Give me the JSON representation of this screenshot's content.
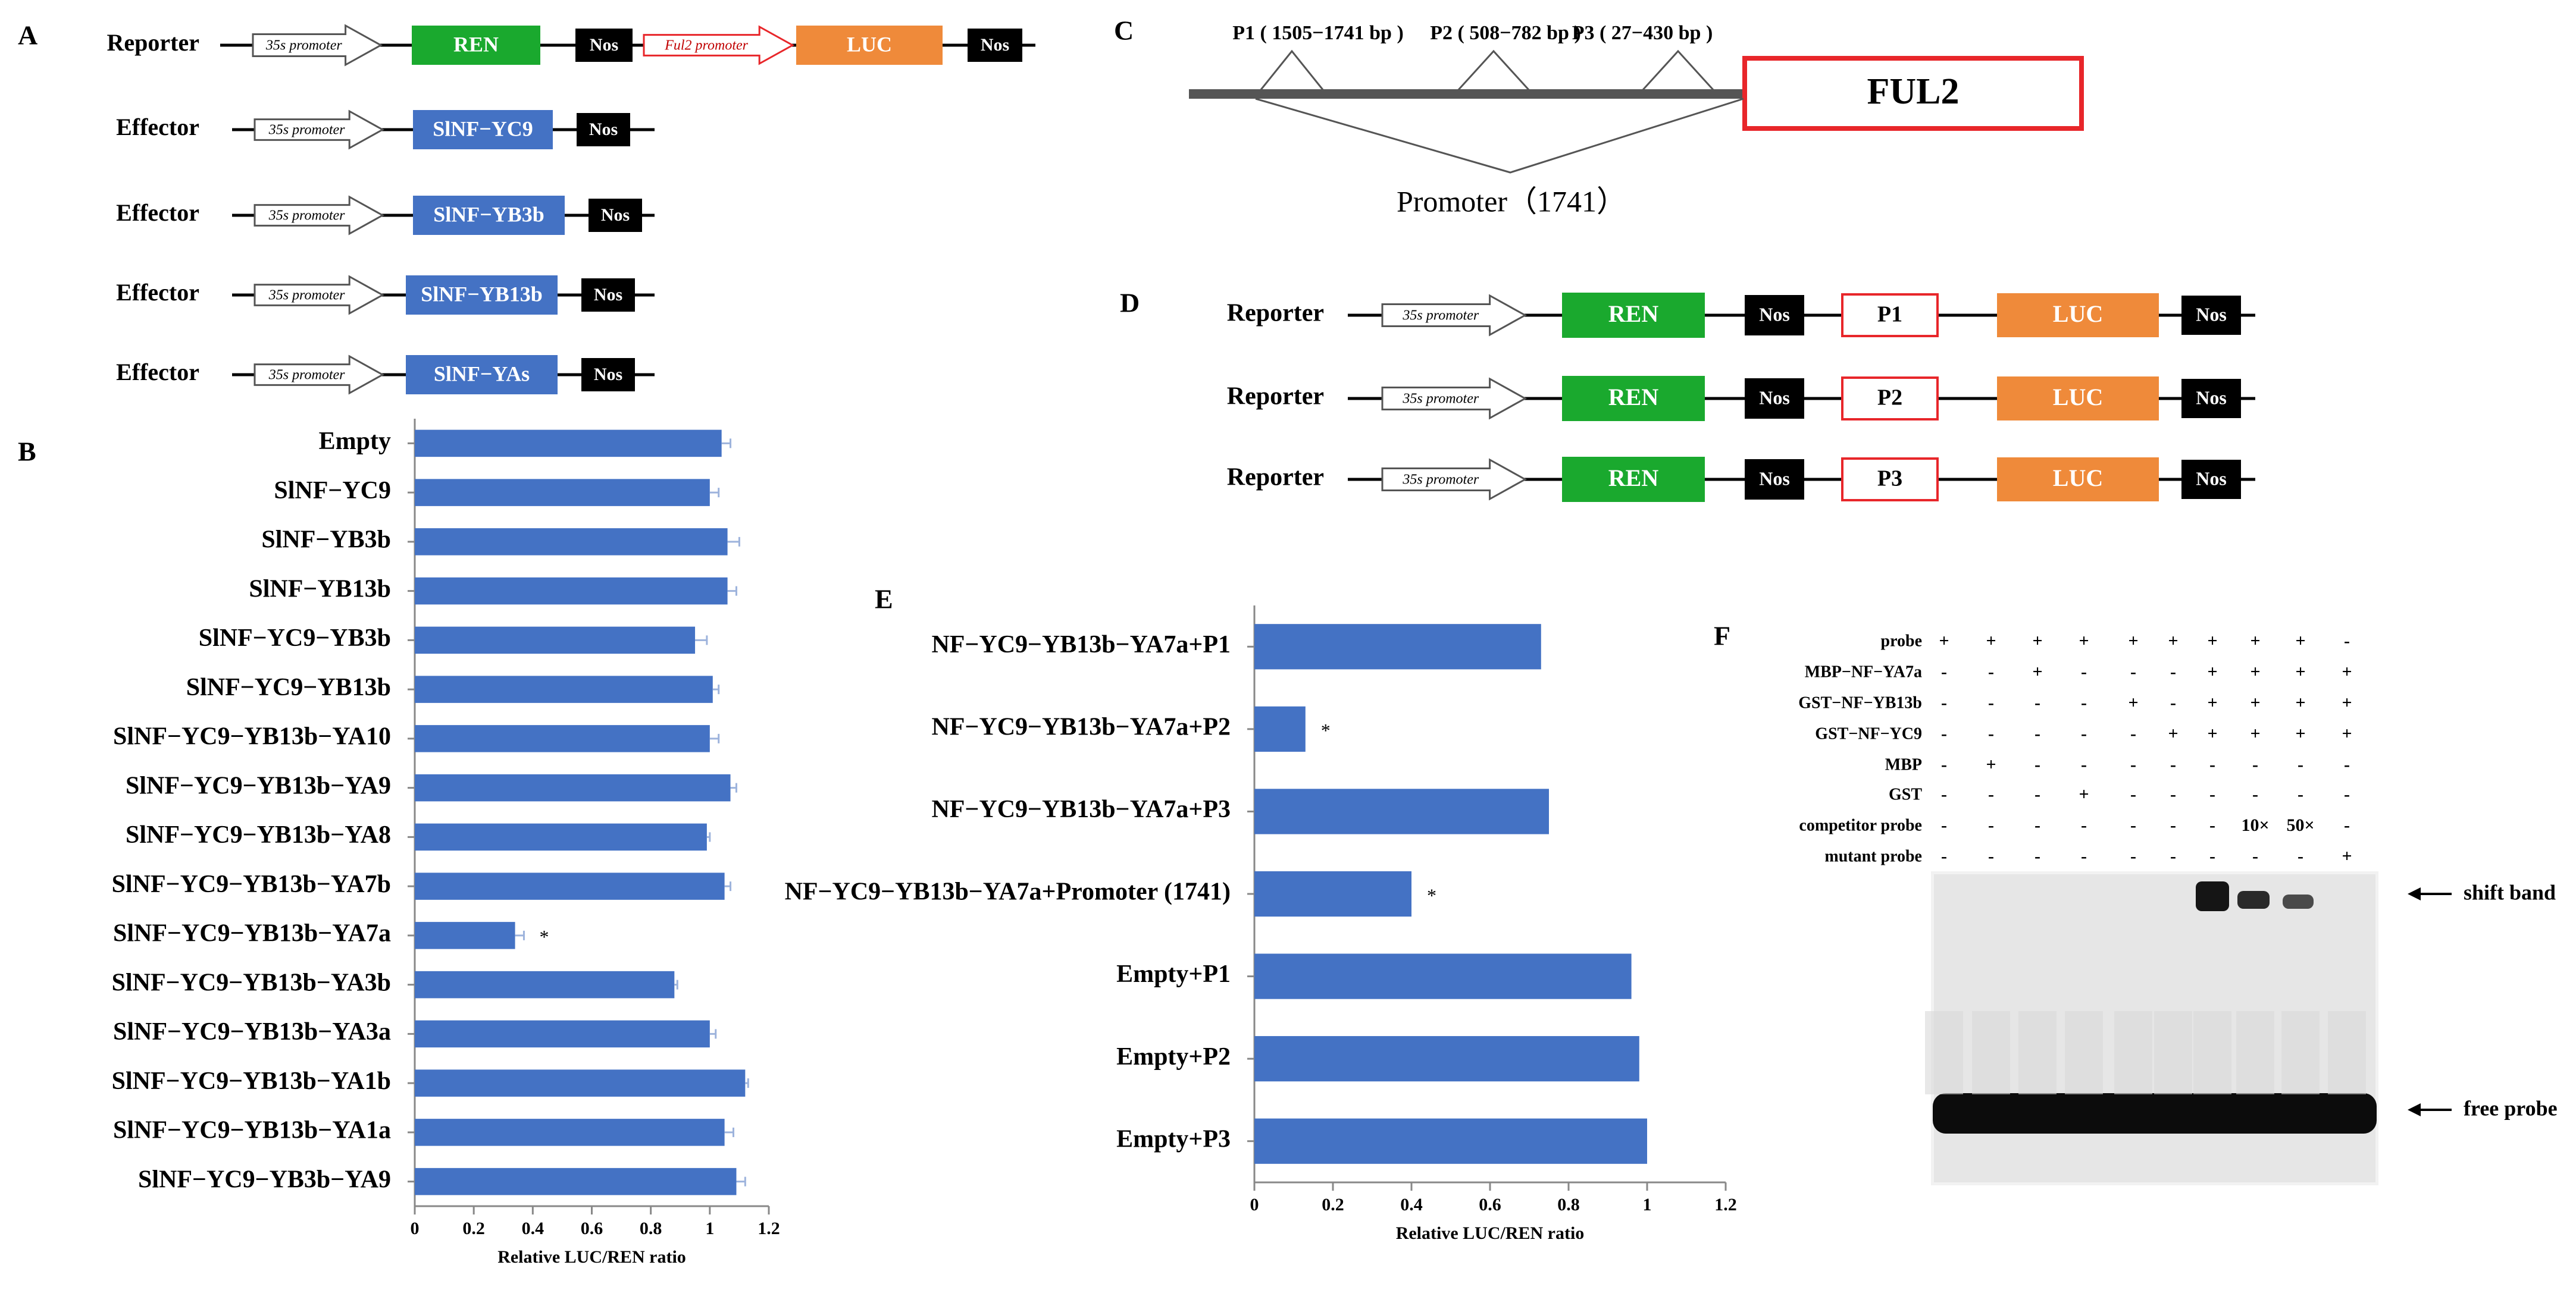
{
  "panel_labels": {
    "A": "A",
    "B": "B",
    "C": "C",
    "D": "D",
    "E": "E",
    "F": "F"
  },
  "panel_a": {
    "rows": [
      {
        "role": "Reporter",
        "elements": [
          "35s promoter",
          "REN",
          "Nos",
          "Ful2 promoter",
          "LUC",
          "Nos"
        ]
      },
      {
        "role": "Effector",
        "elements": [
          "35s promoter",
          "SlNF−YC9",
          "Nos"
        ]
      },
      {
        "role": "Effector",
        "elements": [
          "35s promoter",
          "SlNF−YB3b",
          "Nos"
        ]
      },
      {
        "role": "Effector",
        "elements": [
          "35s promoter",
          "SlNF−YB13b",
          "Nos"
        ]
      },
      {
        "role": "Effector",
        "elements": [
          "35s promoter",
          "SlNF−YAs",
          "Nos"
        ]
      }
    ],
    "colors": {
      "promoter": "#ffffff",
      "ren": "#1aa92e",
      "nos": "#000000",
      "ful2_outline": "#e8262a",
      "luc": "#ef8a3a",
      "effector": "#4472c4"
    }
  },
  "panel_c": {
    "fragments": [
      "P1 ( 1505−1741 bp )",
      "P2 ( 508−782 bp )",
      "P3 ( 27−430 bp )"
    ],
    "gene": "FUL2",
    "promoter_label": "Promoter（1741）",
    "gene_box_color": "#e8262a"
  },
  "panel_d": {
    "rows": [
      {
        "role": "Reporter",
        "elements": [
          "35s promoter",
          "REN",
          "Nos",
          "P1",
          "LUC",
          "Nos"
        ]
      },
      {
        "role": "Reporter",
        "elements": [
          "35s promoter",
          "REN",
          "Nos",
          "P2",
          "LUC",
          "Nos"
        ]
      },
      {
        "role": "Reporter",
        "elements": [
          "35s promoter",
          "REN",
          "Nos",
          "P3",
          "LUC",
          "Nos"
        ]
      }
    ]
  },
  "chart_data": [
    {
      "type": "bar",
      "orientation": "horizontal",
      "panel": "B",
      "categories": [
        "Empty",
        "SlNF−YC9",
        "SlNF−YB3b",
        "SlNF−YB13b",
        "SlNF−YC9−YB3b",
        "SlNF−YC9−YB13b",
        "SlNF−YC9−YB13b−YA10",
        "SlNF−YC9−YB13b−YA9",
        "SlNF−YC9−YB13b−YA8",
        "SlNF−YC9−YB13b−YA7b",
        "SlNF−YC9−YB13b−YA7a",
        "SlNF−YC9−YB13b−YA3b",
        "SlNF−YC9−YB13b−YA3a",
        "SlNF−YC9−YB13b−YA1b",
        "SlNF−YC9−YB13b−YA1a",
        "SlNF−YC9−YB3b−YA9"
      ],
      "values": [
        1.04,
        1.0,
        1.06,
        1.06,
        0.95,
        1.01,
        1.0,
        1.07,
        0.99,
        1.05,
        0.34,
        0.88,
        1.0,
        1.12,
        1.05,
        1.09
      ],
      "errors": [
        0.03,
        0.03,
        0.04,
        0.03,
        0.04,
        0.02,
        0.03,
        0.02,
        0.01,
        0.02,
        0.03,
        0.01,
        0.02,
        0.01,
        0.03,
        0.03
      ],
      "significant": [
        false,
        false,
        false,
        false,
        false,
        false,
        false,
        false,
        false,
        false,
        true,
        false,
        false,
        false,
        false,
        false
      ],
      "xlabel": "Relative LUC/REN ratio",
      "xlim": [
        0,
        1.2
      ],
      "xticks": [
        "0",
        "0.2",
        "0.4",
        "0.6",
        "0.8",
        "1",
        "1.2"
      ],
      "color": "#4472c4"
    },
    {
      "type": "bar",
      "orientation": "horizontal",
      "panel": "E",
      "categories": [
        "NF−YC9−YB13b−YA7a+P1",
        "NF−YC9−YB13b−YA7a+P2",
        "NF−YC9−YB13b−YA7a+P3",
        "NF−YC9−YB13b−YA7a+Promoter (1741)",
        "Empty+P1",
        "Empty+P2",
        "Empty+P3"
      ],
      "values": [
        0.73,
        0.13,
        0.75,
        0.4,
        0.96,
        0.98,
        1.0
      ],
      "significant": [
        false,
        true,
        false,
        true,
        false,
        false,
        false
      ],
      "xlabel": "Relative LUC/REN ratio",
      "xlim": [
        0,
        1.2
      ],
      "xticks": [
        "0",
        "0.2",
        "0.4",
        "0.6",
        "0.8",
        "1",
        "1.2"
      ],
      "color": "#4472c4"
    }
  ],
  "panel_f": {
    "rows": [
      {
        "label": "probe",
        "values": [
          "+",
          "+",
          "+",
          "+",
          "+",
          "+",
          "+",
          "+",
          "+",
          "-"
        ]
      },
      {
        "label": "MBP−NF−YA7a",
        "values": [
          "-",
          "-",
          "+",
          "-",
          "-",
          "-",
          "+",
          "+",
          "+",
          "+"
        ]
      },
      {
        "label": "GST−NF−YB13b",
        "values": [
          "-",
          "-",
          "-",
          "-",
          "+",
          "-",
          "+",
          "+",
          "+",
          "+"
        ]
      },
      {
        "label": "GST−NF−YC9",
        "values": [
          "-",
          "-",
          "-",
          "-",
          "-",
          "+",
          "+",
          "+",
          "+",
          "+"
        ]
      },
      {
        "label": "MBP",
        "values": [
          "-",
          "+",
          "-",
          "-",
          "-",
          "-",
          "-",
          "-",
          "-",
          "-"
        ]
      },
      {
        "label": "GST",
        "values": [
          "-",
          "-",
          "-",
          "+",
          "-",
          "-",
          "-",
          "-",
          "-",
          "-"
        ]
      },
      {
        "label": "competitor probe",
        "values": [
          "-",
          "-",
          "-",
          "-",
          "-",
          "-",
          "-",
          "10×",
          "50×",
          "-"
        ]
      },
      {
        "label": "mutant probe",
        "values": [
          "-",
          "-",
          "-",
          "-",
          "-",
          "-",
          "-",
          "-",
          "-",
          "+"
        ]
      }
    ],
    "band_labels": {
      "shift": "shift band",
      "free": "free probe"
    }
  }
}
